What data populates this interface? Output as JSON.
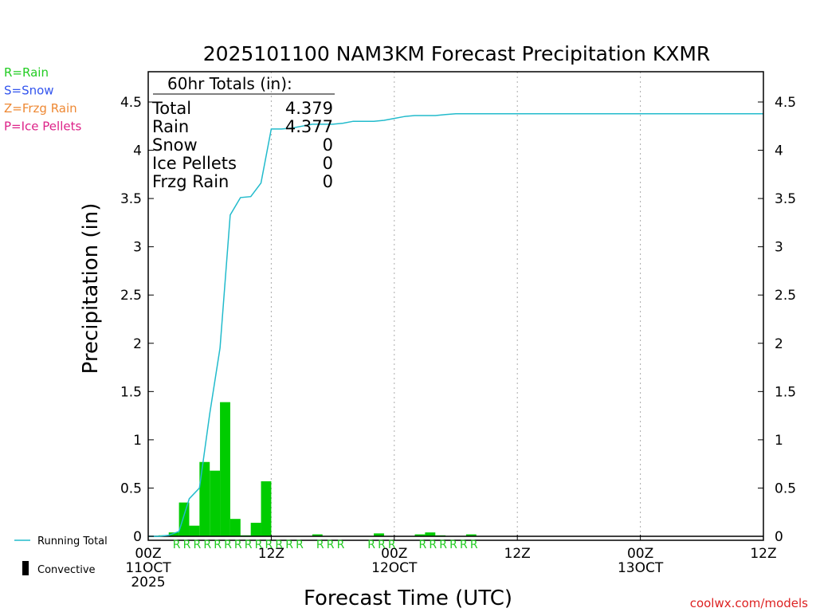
{
  "chart_data": {
    "type": "bar",
    "title": "2025101100 NAM3KM Forecast Precipitation KXMR",
    "xlabel": "Forecast Time (UTC)",
    "ylabel": "Precipitation (in)",
    "ylim": [
      0,
      4.8
    ],
    "xlim_hours": [
      0,
      60
    ],
    "y_ticks": [
      "0",
      "0.5",
      "1",
      "1.5",
      "2",
      "2.5",
      "3",
      "3.5",
      "4",
      "4.5"
    ],
    "x_ticks": [
      {
        "hour": 0,
        "line1": "00Z",
        "line2": "11OCT",
        "line3": "2025"
      },
      {
        "hour": 12,
        "line1": "12Z",
        "line2": "",
        "line3": ""
      },
      {
        "hour": 24,
        "line1": "00Z",
        "line2": "12OCT",
        "line3": ""
      },
      {
        "hour": 36,
        "line1": "12Z",
        "line2": "",
        "line3": ""
      },
      {
        "hour": 48,
        "line1": "00Z",
        "line2": "13OCT",
        "line3": ""
      },
      {
        "hour": 60,
        "line1": "12Z",
        "line2": "",
        "line3": ""
      }
    ],
    "gridlines_hours": [
      12,
      24,
      36,
      48
    ],
    "hourly_precip": {
      "hours": [
        1,
        2,
        3,
        4,
        5,
        6,
        7,
        8,
        9,
        10,
        11,
        12,
        13,
        14,
        15,
        16,
        17,
        18,
        19,
        20,
        21,
        22,
        23,
        24,
        25,
        26,
        27,
        28,
        29,
        30,
        31,
        32
      ],
      "values": [
        0,
        0.01,
        0.04,
        0.35,
        0.11,
        0.77,
        0.68,
        1.39,
        0.18,
        0.01,
        0.14,
        0.57,
        0,
        0,
        0,
        0,
        0.02,
        0,
        0,
        0,
        0,
        0,
        0.03,
        0,
        0,
        0,
        0.02,
        0.04,
        0.01,
        0,
        0,
        0.02
      ]
    },
    "running_total": {
      "name": "Running Total",
      "hours": [
        0,
        1,
        2,
        3,
        4,
        5,
        6,
        7,
        8,
        9,
        10,
        11,
        12,
        13,
        14,
        15,
        16,
        17,
        18,
        19,
        20,
        21,
        22,
        23,
        24,
        25,
        26,
        27,
        28,
        29,
        30,
        31,
        32,
        33,
        60
      ],
      "values": [
        0,
        0,
        0.01,
        0.05,
        0.39,
        0.5,
        1.27,
        1.95,
        3.33,
        3.51,
        3.52,
        3.66,
        4.22,
        4.22,
        4.23,
        4.25,
        4.27,
        4.27,
        4.27,
        4.28,
        4.3,
        4.3,
        4.3,
        4.31,
        4.33,
        4.35,
        4.36,
        4.36,
        4.36,
        4.37,
        4.378,
        4.379,
        4.379,
        4.379,
        4.379
      ]
    },
    "ptype_markers": {
      "label": "R",
      "hours": [
        3,
        4,
        5,
        6,
        7,
        8,
        9,
        10,
        11,
        12,
        13,
        14,
        15,
        17,
        18,
        19,
        22,
        23,
        24,
        27,
        28,
        29,
        30,
        31,
        32
      ]
    },
    "totals_box": {
      "heading": "60hr Totals (in):",
      "rows": [
        {
          "label": "Total",
          "value": "4.379"
        },
        {
          "label": "Rain",
          "value": "4.377"
        },
        {
          "label": "Snow",
          "value": "0"
        },
        {
          "label": "Ice Pellets",
          "value": "0"
        },
        {
          "label": "Frzg Rain",
          "value": "0"
        }
      ]
    },
    "ptype_legend": [
      {
        "text": "R=Rain",
        "color": "#22cc22"
      },
      {
        "text": "S=Snow",
        "color": "#3355ee"
      },
      {
        "text": "Z=Frzg Rain",
        "color": "#ee8833"
      },
      {
        "text": "P=Ice Pellets",
        "color": "#dd2288"
      }
    ],
    "series_legend": [
      {
        "text": "Running Total",
        "symbol": "line",
        "color": "#22bbcc"
      },
      {
        "text": "Convective",
        "symbol": "bar",
        "color": "#000000"
      }
    ],
    "colors": {
      "bars": "#00cc00",
      "running_total": "#22bbcc",
      "markers": "#22cc22",
      "credit": "#dd2222"
    },
    "credit": "coolwx.com/models"
  }
}
